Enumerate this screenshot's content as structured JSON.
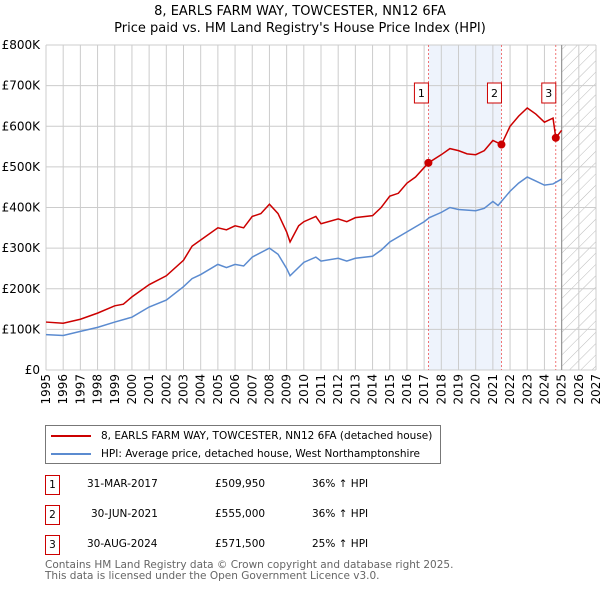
{
  "chart_data": {
    "type": "line",
    "title": "8, EARLS FARM WAY, TOWCESTER, NN12 6FA",
    "subtitle": "Price paid vs. HM Land Registry's House Price Index (HPI)",
    "xlim": [
      1995,
      2027
    ],
    "ylim": [
      0,
      800000
    ],
    "x_ticks": [
      "1995",
      "1996",
      "1997",
      "1998",
      "1999",
      "2000",
      "2001",
      "2002",
      "2003",
      "2004",
      "2005",
      "2006",
      "2007",
      "2008",
      "2009",
      "2010",
      "2011",
      "2012",
      "2013",
      "2014",
      "2015",
      "2016",
      "2017",
      "2018",
      "2019",
      "2020",
      "2021",
      "2022",
      "2023",
      "2024",
      "2025",
      "2026",
      "2027"
    ],
    "y_ticks": [
      {
        "v": 0,
        "label": "£0"
      },
      {
        "v": 100000,
        "label": "£100K"
      },
      {
        "v": 200000,
        "label": "£200K"
      },
      {
        "v": 300000,
        "label": "£300K"
      },
      {
        "v": 400000,
        "label": "£400K"
      },
      {
        "v": 500000,
        "label": "£500K"
      },
      {
        "v": 600000,
        "label": "£600K"
      },
      {
        "v": 700000,
        "label": "£700K"
      },
      {
        "v": 800000,
        "label": "£800K"
      }
    ],
    "grid": true,
    "shaded_range": [
      2017.25,
      2021.5
    ],
    "forecast_from": 2025.0,
    "series": [
      {
        "name": "8, EARLS FARM WAY, TOWCESTER, NN12 6FA (detached house)",
        "color": "#cc0000",
        "x": [
          1995,
          1996,
          1997,
          1998,
          1999,
          1999.5,
          2000,
          2001,
          2002,
          2003,
          2003.5,
          2004,
          2005,
          2005.5,
          2006,
          2006.5,
          2007,
          2007.5,
          2008,
          2008.5,
          2009,
          2009.2,
          2009.7,
          2010,
          2010.7,
          2011,
          2012,
          2012.5,
          2013,
          2014,
          2014.5,
          2015,
          2015.5,
          2016,
          2016.5,
          2017.25,
          2018,
          2018.5,
          2019,
          2019.5,
          2020,
          2020.5,
          2021,
          2021.5,
          2022,
          2022.5,
          2023,
          2023.5,
          2024,
          2024.5,
          2024.66,
          2025
        ],
        "y": [
          118000,
          115000,
          125000,
          140000,
          158000,
          162000,
          180000,
          210000,
          232000,
          270000,
          305000,
          320000,
          350000,
          345000,
          355000,
          350000,
          378000,
          385000,
          408000,
          385000,
          340000,
          315000,
          355000,
          365000,
          378000,
          360000,
          372000,
          365000,
          375000,
          380000,
          400000,
          428000,
          435000,
          460000,
          475000,
          509950,
          530000,
          545000,
          540000,
          532000,
          530000,
          540000,
          565000,
          555000,
          600000,
          625000,
          645000,
          630000,
          610000,
          620000,
          571500,
          590000
        ]
      },
      {
        "name": "HPI: Average price, detached house, West Northamptonshire",
        "color": "#5b8bd0",
        "x": [
          1995,
          1996,
          1997,
          1998,
          1999,
          2000,
          2001,
          2002,
          2003,
          2003.5,
          2004,
          2005,
          2005.5,
          2006,
          2006.5,
          2007,
          2008,
          2008.5,
          2009,
          2009.2,
          2010,
          2010.7,
          2011,
          2012,
          2012.5,
          2013,
          2014,
          2014.5,
          2015,
          2016,
          2017,
          2017.3,
          2018,
          2018.5,
          2019,
          2020,
          2020.5,
          2021,
          2021.3,
          2022,
          2022.5,
          2023,
          2023.5,
          2024,
          2024.5,
          2025
        ],
        "y": [
          87000,
          85000,
          95000,
          105000,
          118000,
          130000,
          155000,
          172000,
          205000,
          225000,
          235000,
          260000,
          252000,
          260000,
          256000,
          278000,
          300000,
          285000,
          250000,
          232000,
          265000,
          278000,
          268000,
          275000,
          268000,
          275000,
          280000,
          295000,
          315000,
          340000,
          365000,
          375000,
          388000,
          400000,
          395000,
          392000,
          398000,
          415000,
          405000,
          440000,
          460000,
          475000,
          465000,
          455000,
          458000,
          470000
        ]
      }
    ],
    "annotations": [
      {
        "label": "1",
        "x": 2017.25,
        "y": 509950,
        "date": "31-MAR-2017",
        "price": "£509,950",
        "hpi": "36% ↑ HPI"
      },
      {
        "label": "2",
        "x": 2021.5,
        "y": 555000,
        "date": "30-JUN-2021",
        "price": "£555,000",
        "hpi": "36% ↑ HPI"
      },
      {
        "label": "3",
        "x": 2024.66,
        "y": 571500,
        "date": "30-AUG-2024",
        "price": "£571,500",
        "hpi": "25% ↑ HPI"
      }
    ]
  },
  "footer": {
    "line1": "Contains HM Land Registry data © Crown copyright and database right 2025.",
    "line2": "This data is licensed under the Open Government Licence v3.0."
  }
}
